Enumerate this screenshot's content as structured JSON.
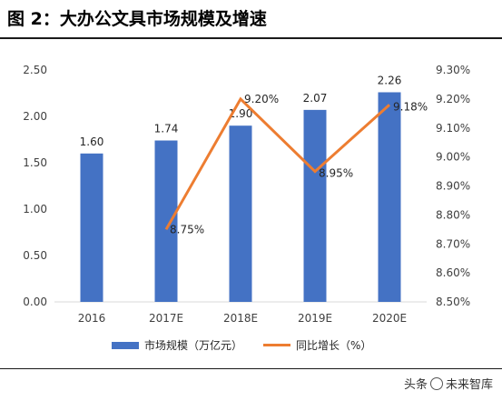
{
  "page": {
    "title": "图 2：大办公文具市场规模及增速",
    "watermark_prefix": "头条",
    "watermark_suffix": "未来智库"
  },
  "colors": {
    "bar": "#4472C4",
    "line": "#ED7D31",
    "axis": "#D9D9D9"
  },
  "chart_data": {
    "type": "bar",
    "categories": [
      "2016",
      "2017E",
      "2018E",
      "2019E",
      "2020E"
    ],
    "series": [
      {
        "name": "市场规模（万亿元）",
        "type": "bar",
        "axis": "left",
        "values": [
          1.6,
          1.74,
          1.9,
          2.07,
          2.26
        ],
        "labels": [
          "1.60",
          "1.74",
          "1.90",
          "2.07",
          "2.26"
        ]
      },
      {
        "name": "同比增长（%）",
        "type": "line",
        "axis": "right",
        "values": [
          null,
          8.75,
          9.2,
          8.95,
          9.18
        ],
        "labels": [
          "",
          "8.75%",
          "9.20%",
          "8.95%",
          "9.18%"
        ]
      }
    ],
    "y_left": {
      "min": 0,
      "max": 2.5,
      "ticks": [
        "0.00",
        "0.50",
        "1.00",
        "1.50",
        "2.00",
        "2.50"
      ]
    },
    "y_right": {
      "min": 8.5,
      "max": 9.3,
      "ticks": [
        "8.50%",
        "8.60%",
        "8.70%",
        "8.80%",
        "8.90%",
        "9.00%",
        "9.10%",
        "9.20%",
        "9.30%"
      ]
    },
    "legend_position": "bottom",
    "grid": false
  }
}
